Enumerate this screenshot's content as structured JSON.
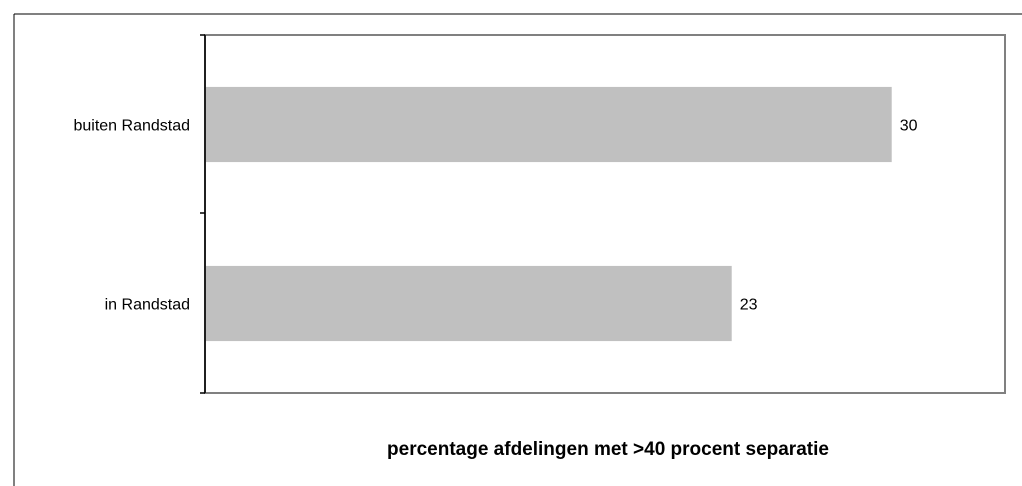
{
  "chart_data": {
    "type": "bar",
    "orientation": "horizontal",
    "categories": [
      "buiten Randstad",
      "in Randstad"
    ],
    "values": [
      30,
      23
    ],
    "data_labels": [
      "30",
      "23"
    ],
    "xlabel": "percentage afdelingen met >40 procent separatie",
    "ylabel": "",
    "xlim": [
      0,
      35
    ],
    "grid": false,
    "legend": "none",
    "colors": {
      "bar": "#c0c0c0",
      "plot_border": "#808080",
      "axis": "#000000",
      "outer_border": "#000000"
    }
  }
}
